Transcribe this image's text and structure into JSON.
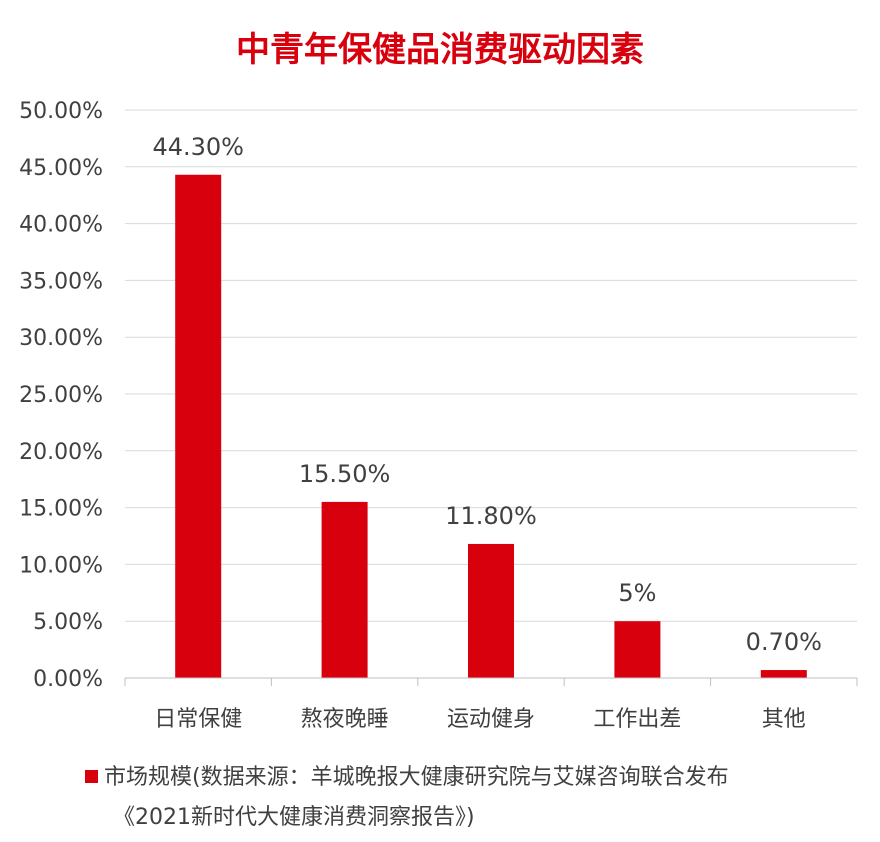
{
  "chart_data": {
    "type": "bar",
    "title": "中青年保健品消费驱动因素",
    "categories": [
      "日常保健",
      "熬夜晚睡",
      "运动健身",
      "工作出差",
      "其他"
    ],
    "series": [
      {
        "name": "市场规模(数据来源：羊城晚报大健康研究院与艾媒咨询联合发布",
        "values": [
          44.3,
          15.5,
          11.8,
          5,
          0.7
        ],
        "labels": [
          "44.30%",
          "15.50%",
          "11.80%",
          "5%",
          "0.70%"
        ]
      }
    ],
    "ylim": [
      0,
      50
    ],
    "yticks": [
      "0.00%",
      "5.00%",
      "10.00%",
      "15.00%",
      "20.00%",
      "25.00%",
      "30.00%",
      "35.00%",
      "40.00%",
      "45.00%",
      "50.00%"
    ],
    "ytick_values": [
      0,
      5,
      10,
      15,
      20,
      25,
      30,
      35,
      40,
      45,
      50
    ],
    "grid": true,
    "legend_position": "bottom",
    "source_line": "《2021新时代大健康消费洞察报告》)",
    "colors": {
      "bar": "#d9000e",
      "grid": "#d9d9d9",
      "axis": "#bfbfbf",
      "title": "#d9000e",
      "text": "#404040"
    }
  }
}
